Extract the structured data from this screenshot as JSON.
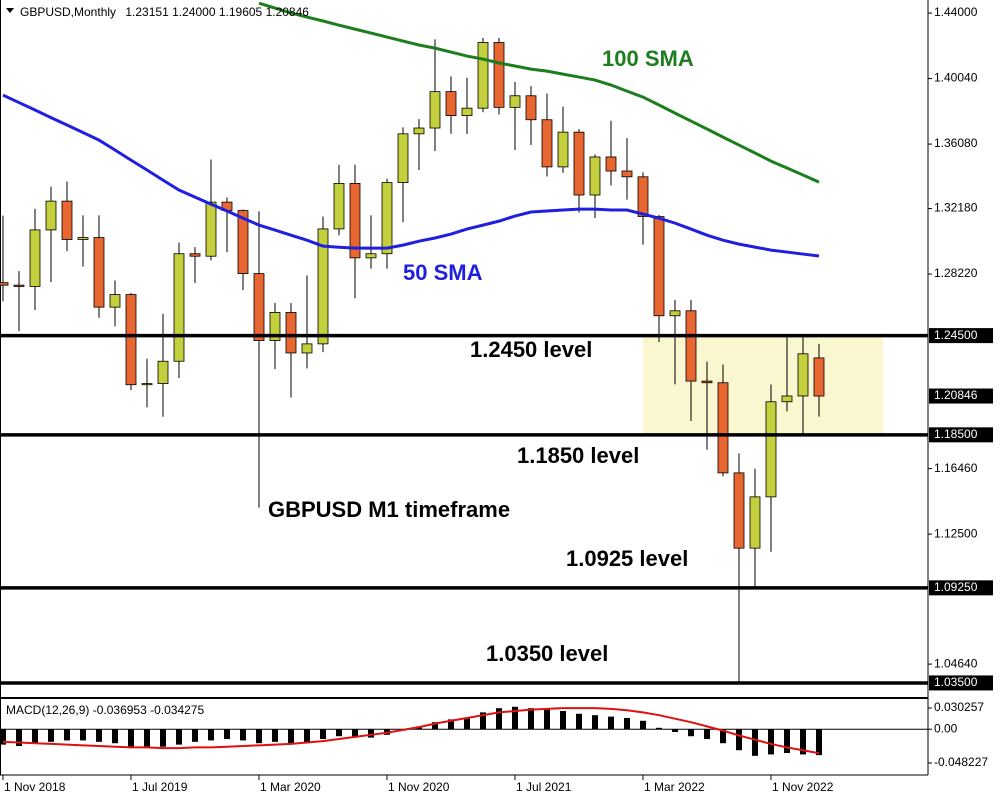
{
  "chart_data": [
    {
      "type": "candlestick",
      "title": "GBPUSD,Monthly",
      "header_value_labels": [
        "1.23151",
        "1.24000",
        "1.19605",
        "1.20846"
      ],
      "categories": [
        "1 Nov 2018",
        null,
        null,
        null,
        null,
        null,
        null,
        null,
        "1 Jul 2019",
        null,
        null,
        null,
        null,
        null,
        null,
        null,
        "1 Mar 2020",
        null,
        null,
        null,
        null,
        null,
        null,
        null,
        "1 Nov 2020",
        null,
        null,
        null,
        null,
        null,
        null,
        null,
        "1 Jul 2021",
        null,
        null,
        null,
        null,
        null,
        null,
        null,
        "1 Mar 2022",
        null,
        null,
        null,
        null,
        null,
        null,
        null,
        "1 Nov 2022",
        null,
        null,
        null
      ],
      "open": [
        1.277,
        1.2755,
        1.2747,
        1.3089,
        1.3263,
        1.3031,
        1.3043,
        1.2622,
        1.2698,
        1.2153,
        1.216,
        1.2295,
        1.2945,
        1.293,
        1.3257,
        1.3206,
        1.2825,
        1.242,
        1.259,
        1.2345,
        1.24,
        1.3095,
        1.337,
        1.292,
        1.2945,
        1.3375,
        1.367,
        1.3705,
        1.3925,
        1.378,
        1.3825,
        1.4222,
        1.383,
        1.39,
        1.3755,
        1.347,
        1.368,
        1.33,
        1.353,
        1.3445,
        1.341,
        1.317,
        1.257,
        1.26,
        1.2175,
        1.2165,
        1.162,
        1.1165,
        1.1475,
        1.205,
        1.2085,
        1.23151
      ],
      "high": [
        1.3175,
        1.284,
        1.3216,
        1.335,
        1.3381,
        1.3177,
        1.3177,
        1.2783,
        1.2708,
        1.231,
        1.2582,
        1.3013,
        1.2985,
        1.3515,
        1.3285,
        1.3213,
        1.3201,
        1.2648,
        1.2647,
        1.2813,
        1.317,
        1.3482,
        1.3483,
        1.3177,
        1.3398,
        1.3709,
        1.3759,
        1.4241,
        1.4017,
        1.4009,
        1.425,
        1.425,
        1.3984,
        1.3958,
        1.3913,
        1.3834,
        1.3698,
        1.3546,
        1.3749,
        1.3644,
        1.3437,
        1.318,
        1.2666,
        1.2666,
        1.2293,
        1.2275,
        1.1738,
        1.1645,
        1.2154,
        1.2446,
        1.2448,
        1.24
      ],
      "low": [
        1.2658,
        1.2477,
        1.2605,
        1.2773,
        1.2961,
        1.2867,
        1.2558,
        1.2506,
        1.212,
        1.2016,
        1.1959,
        1.2194,
        1.2769,
        1.2905,
        1.2954,
        1.2725,
        1.141,
        1.2247,
        1.2076,
        1.2252,
        1.235,
        1.3057,
        1.2676,
        1.2855,
        1.2855,
        1.3135,
        1.3451,
        1.3566,
        1.367,
        1.3669,
        1.38,
        1.3787,
        1.3572,
        1.3602,
        1.3412,
        1.3434,
        1.3194,
        1.3161,
        1.3358,
        1.3272,
        1.3,
        1.2411,
        1.2155,
        1.1934,
        1.176,
        1.16,
        1.035,
        1.0924,
        1.1143,
        1.1992,
        1.1841,
        1.19605
      ],
      "close": [
        1.2755,
        1.2747,
        1.3089,
        1.3263,
        1.3031,
        1.3043,
        1.2622,
        1.2698,
        1.2153,
        1.216,
        1.2295,
        1.2945,
        1.293,
        1.3257,
        1.3206,
        1.2825,
        1.242,
        1.259,
        1.2345,
        1.24,
        1.3095,
        1.337,
        1.292,
        1.2945,
        1.3375,
        1.367,
        1.3705,
        1.3925,
        1.378,
        1.3825,
        1.4222,
        1.383,
        1.39,
        1.3755,
        1.347,
        1.368,
        1.33,
        1.353,
        1.3445,
        1.341,
        1.317,
        1.257,
        1.26,
        1.2175,
        1.2165,
        1.162,
        1.1165,
        1.1475,
        1.205,
        1.2085,
        1.234,
        1.20846
      ],
      "up_color": "#c3cf3c",
      "down_color": "#e8662f",
      "series": [
        {
          "name": "50 SMA",
          "color": "#1f1fe0",
          "values": [
            1.3904,
            1.3859,
            1.3814,
            1.3768,
            1.3723,
            1.3678,
            1.3632,
            1.3572,
            1.3511,
            1.3451,
            1.339,
            1.333,
            1.3287,
            1.3245,
            1.3203,
            1.316,
            1.3118,
            1.3088,
            1.3057,
            1.3027,
            1.2991,
            1.2984,
            1.2979,
            1.2979,
            1.2979,
            1.2997,
            1.3021,
            1.304,
            1.3064,
            1.3094,
            1.3118,
            1.3142,
            1.3173,
            1.3197,
            1.3203,
            1.3209,
            1.3215,
            1.3215,
            1.3209,
            1.3209,
            1.3185,
            1.316,
            1.313,
            1.3094,
            1.3057,
            1.3027,
            1.3003,
            1.2985,
            1.2967,
            1.2955,
            1.2943,
            1.2931
          ]
        },
        {
          "name": "100 SMA",
          "color": "#1e7d1e",
          "values": [
            null,
            null,
            null,
            null,
            null,
            null,
            null,
            null,
            null,
            null,
            null,
            null,
            null,
            null,
            null,
            null,
            1.446,
            1.443,
            1.44,
            1.4376,
            1.4352,
            1.4327,
            1.4303,
            1.4279,
            1.4255,
            1.4231,
            1.4207,
            1.4188,
            1.4164,
            1.414,
            1.4122,
            1.4098,
            1.408,
            1.4061,
            1.4049,
            1.4031,
            1.4013,
            1.3995,
            1.3965,
            1.3928,
            1.3892,
            1.3844,
            1.3795,
            1.3747,
            1.3699,
            1.365,
            1.3602,
            1.3554,
            1.3505,
            1.3463,
            1.3421,
            1.3378
          ]
        }
      ],
      "ylim": [
        1.0265,
        1.4479
      ],
      "yticks": [
        {
          "value": 1.44,
          "label": "1.44000"
        },
        {
          "value": 1.4004,
          "label": "1.40040"
        },
        {
          "value": 1.3608,
          "label": "1.36080"
        },
        {
          "value": 1.3218,
          "label": "1.32180"
        },
        {
          "value": 1.2822,
          "label": "1.28220"
        },
        {
          "value": 1.1646,
          "label": "1.16460"
        },
        {
          "value": 1.125,
          "label": "1.12500"
        },
        {
          "value": 1.0464,
          "label": "1.04640"
        }
      ],
      "levels": [
        {
          "value": 1.245,
          "label": "1.24500",
          "text": "1.2450 level"
        },
        {
          "value": 1.185,
          "label": "1.18500",
          "text": "1.1850 level"
        },
        {
          "value": 1.0925,
          "label": "1.09250",
          "text": "1.0925 level"
        },
        {
          "value": 1.035,
          "label": "1.03500",
          "text": "1.0350 level"
        }
      ],
      "zone": {
        "from": 1.185,
        "to": 1.245,
        "color": "#faf6d0"
      },
      "annotations": [
        "GBPUSD M1 timeframe"
      ]
    },
    {
      "type": "macd",
      "title": "MACD(12,26,9)",
      "series": [
        {
          "color": "#000000",
          "values": [
            -0.022,
            -0.024,
            -0.02,
            -0.018,
            -0.016,
            -0.016,
            -0.018,
            -0.02,
            -0.026,
            -0.027,
            -0.025,
            -0.022,
            -0.018,
            -0.016,
            -0.014,
            -0.016,
            -0.02,
            -0.018,
            -0.02,
            -0.02,
            -0.014,
            -0.01,
            -0.012,
            -0.012,
            -0.008,
            -0.002,
            0.004,
            0.01,
            0.014,
            0.016,
            0.024,
            0.03,
            0.032,
            0.03,
            0.028,
            0.026,
            0.022,
            0.02,
            0.018,
            0.016,
            0.012,
            0.002,
            -0.004,
            -0.01,
            -0.014,
            -0.02,
            -0.03,
            -0.038,
            -0.036,
            -0.034,
            -0.036,
            -0.036953
          ]
        },
        {
          "color": "#e01010",
          "values": [
            -0.018,
            -0.019,
            -0.02,
            -0.021,
            -0.022,
            -0.023,
            -0.024,
            -0.025,
            -0.026,
            -0.026,
            -0.027,
            -0.027,
            -0.026,
            -0.026,
            -0.025,
            -0.024,
            -0.023,
            -0.022,
            -0.021,
            -0.019,
            -0.017,
            -0.014,
            -0.011,
            -0.008,
            -0.005,
            -0.001,
            0.003,
            0.008,
            0.012,
            0.016,
            0.02,
            0.024,
            0.026,
            0.028,
            0.029,
            0.03,
            0.03,
            0.03,
            0.029,
            0.027,
            0.024,
            0.02,
            0.015,
            0.01,
            0.004,
            -0.002,
            -0.009,
            -0.015,
            -0.021,
            -0.026,
            -0.03,
            -0.034275
          ]
        }
      ],
      "ylim": [
        -0.06535,
        0.0431
      ],
      "yticks": [
        0.030257,
        {
          "value": 0,
          "label": "0.00"
        },
        -0.048227
      ]
    }
  ]
}
